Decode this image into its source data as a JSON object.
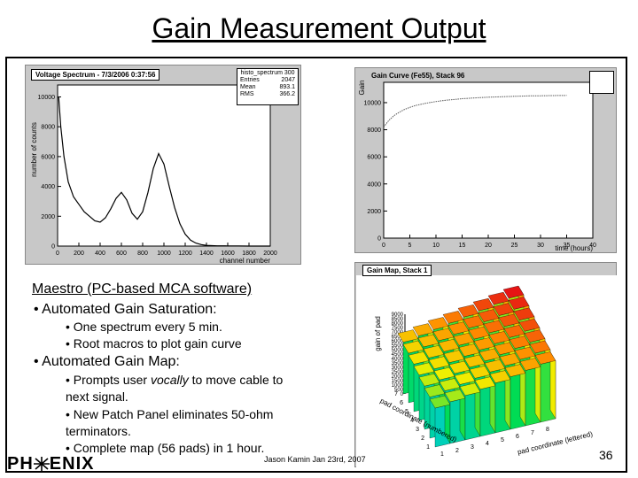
{
  "slide": {
    "title": "Gain Measurement Output",
    "heading": "Maestro (PC-based MCA software)",
    "bullet1": "• Automated Gain Saturation:",
    "bullet1_sub1": "• One spectrum every 5 min.",
    "bullet1_sub2": "• Root macros to plot gain curve",
    "bullet2": "• Automated Gain Map:",
    "bullet2_sub1_pre": "• Prompts user ",
    "bullet2_sub1_em": "vocally",
    "bullet2_sub1_post": " to move cable to",
    "bullet2_sub1_line2": "next signal.",
    "bullet2_sub2_line1": "• New Patch Panel eliminates 50-ohm",
    "bullet2_sub2_line2": "terminators.",
    "bullet2_sub3": "• Complete map (56 pads) in 1 hour.",
    "credit": "Jason Kamin Jan 23rd, 2007",
    "page_number": "36",
    "logo_left": "PH",
    "logo_right": "ENIX"
  },
  "panels": {
    "spectrum": {
      "title": "Voltage Spectrum - 7/3/2006 0:37:56",
      "stats_title": "histo_spectrum 300",
      "stats": [
        [
          "Entries",
          "2047"
        ],
        [
          "Mean",
          "893.1"
        ],
        [
          "RMS",
          "366.2"
        ]
      ],
      "ylabel": "number of counts",
      "xlabel": "channel number"
    },
    "gaincurve": {
      "title": "Gain Curve (Fe55), Stack 96",
      "ylabel": "Gain",
      "xlabel": "time (hours)"
    },
    "gainmap": {
      "title": "Gain Map, Stack 1",
      "zlabel": "gain of pad",
      "xlabel": "pad coordinate (lettered)",
      "ylabel": "pad coordinate (numbered)"
    }
  },
  "chart_data": [
    {
      "type": "line",
      "title": "Voltage Spectrum - 7/3/2006 0:37:56",
      "xlabel": "channel number",
      "ylabel": "number of counts",
      "xlim": [
        0,
        2000
      ],
      "ylim": [
        0,
        10800
      ],
      "xticks": [
        0,
        200,
        400,
        600,
        800,
        1000,
        1200,
        1400,
        1600,
        1800,
        2000
      ],
      "yticks": [
        0,
        2000,
        4000,
        6000,
        8000,
        10000
      ],
      "x": [
        10,
        30,
        60,
        100,
        150,
        200,
        250,
        300,
        350,
        400,
        450,
        500,
        550,
        600,
        650,
        700,
        750,
        800,
        850,
        900,
        950,
        1000,
        1050,
        1100,
        1150,
        1200,
        1250,
        1300,
        1350,
        1400,
        1500,
        1600,
        1700,
        1800,
        1900,
        2000
      ],
      "y": [
        10000,
        8000,
        6000,
        4300,
        3300,
        2800,
        2300,
        2000,
        1700,
        1600,
        1900,
        2500,
        3200,
        3600,
        3100,
        2200,
        1800,
        2300,
        3600,
        5200,
        6200,
        5500,
        4000,
        2600,
        1500,
        800,
        400,
        200,
        100,
        50,
        20,
        10,
        5,
        2,
        0,
        0
      ]
    },
    {
      "type": "line",
      "title": "Gain Curve (Fe55), Stack 96",
      "xlabel": "time (hours)",
      "ylabel": "Gain",
      "xlim": [
        0,
        40
      ],
      "ylim": [
        0,
        11500
      ],
      "xticks": [
        0,
        5,
        10,
        15,
        20,
        25,
        30,
        35,
        40
      ],
      "yticks": [
        0,
        2000,
        4000,
        6000,
        8000,
        10000
      ],
      "x": [
        0,
        1,
        2,
        3,
        4,
        5,
        6,
        8,
        10,
        12,
        15,
        18,
        20,
        22,
        25,
        28,
        30,
        32,
        35
      ],
      "y": [
        8200,
        8700,
        9050,
        9300,
        9500,
        9650,
        9780,
        9950,
        10080,
        10180,
        10290,
        10360,
        10400,
        10430,
        10470,
        10500,
        10510,
        10520,
        10530
      ]
    },
    {
      "type": "heatmap",
      "title": "Gain Map, Stack 1",
      "zlabel": "gain of pad",
      "xlabel": "pad coordinate (lettered)",
      "ylabel": "pad coordinate (numbered)",
      "zticks": [
        0,
        500,
        1000,
        1500,
        2000,
        2500,
        3000,
        3500,
        4000,
        4500,
        5000,
        5500,
        6000,
        6500,
        7000,
        7500,
        8000,
        8500,
        9000
      ],
      "xticks": [
        "1",
        "2",
        "3",
        "4",
        "5",
        "6",
        "7",
        "8"
      ],
      "yticks": [
        "1",
        "2",
        "3",
        "4",
        "5",
        "6",
        "7"
      ]
    }
  ]
}
